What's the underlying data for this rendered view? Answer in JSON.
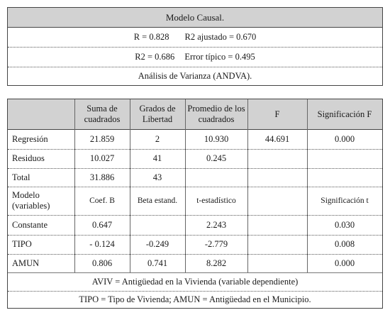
{
  "summary": {
    "title": "Modelo Causal.",
    "r": "R = 0.828",
    "r2_adjusted": "R2 ajustado = 0.670",
    "r2": "R2 = 0.686",
    "std_error": "Error típico = 0.495",
    "anova_caption": "Análisis de Varianza (ANDVA)."
  },
  "table": {
    "header": [
      "",
      "Suma de cuadrados",
      "Grados de Libertad",
      "Promedio de los cuadrados",
      "F",
      "Significación F"
    ],
    "rows": [
      [
        "Regresión",
        "21.859",
        "2",
        "10.930",
        "44.691",
        "0.000"
      ],
      [
        "Residuos",
        "10.027",
        "41",
        "0.245",
        "",
        ""
      ],
      [
        "Total",
        "31.886",
        "43",
        "",
        "",
        ""
      ],
      [
        "Modelo (variables)",
        "Coef. B",
        "Beta estand.",
        "t-estadístico",
        "",
        "Significación t"
      ],
      [
        "Constante",
        "0.647",
        "",
        "2.243",
        "",
        "0.030"
      ],
      [
        "TIPO",
        "- 0.124",
        "-0.249",
        "-2.779",
        "",
        "0.008"
      ],
      [
        "AMUN",
        "0.806",
        "0.741",
        "8.282",
        "",
        "0.000"
      ]
    ],
    "notes": [
      "AVIV = Antigüedad en la Vivienda (variable dependiente)",
      "TIPO = Tipo de Vivienda; AMUN = Antigüedad en el Municipio."
    ]
  }
}
